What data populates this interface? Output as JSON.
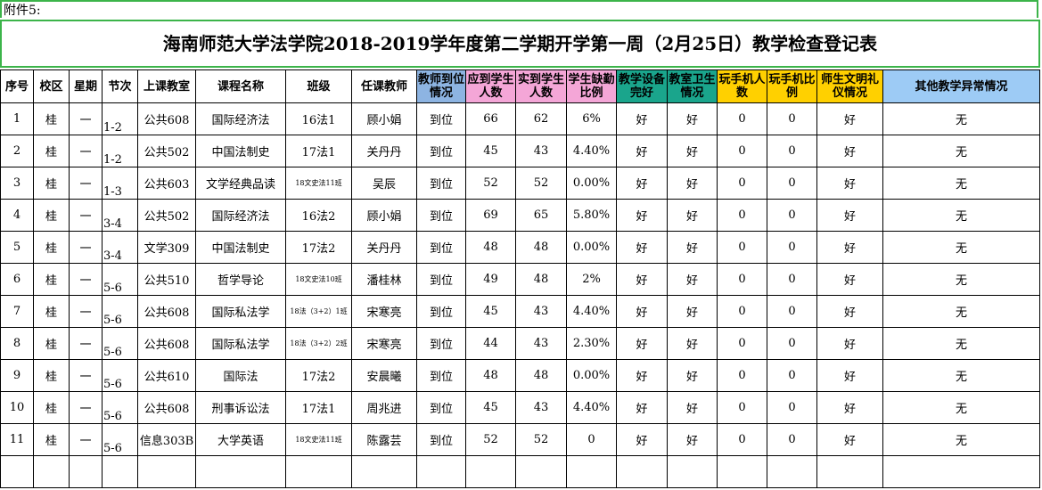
{
  "header": {
    "attachment": "附件5:",
    "title": "海南师范大学法学院2018-2019学年度第二学期开学第一周（2月25日）教学检查登记表"
  },
  "table": {
    "headers": [
      "序号",
      "校区",
      "星期",
      "节次",
      "上课教室",
      "课程名称",
      "班级",
      "任课教师",
      "教师到位情况",
      "应到学生人数",
      "实到学生人数",
      "学生缺勤比例",
      "教学设备完好",
      "教室卫生情况",
      "玩手机人数",
      "玩手机比例",
      "师生文明礼仪情况",
      "其他教学异常情况"
    ],
    "rows": [
      [
        "1",
        "桂",
        "一",
        "1-2",
        "公共608",
        "国际经济法",
        "16法1",
        "顾小娟",
        "到位",
        "66",
        "62",
        "6%",
        "好",
        "好",
        "0",
        "0",
        "好",
        "无"
      ],
      [
        "2",
        "桂",
        "一",
        "1-2",
        "公共502",
        "中国法制史",
        "17法1",
        "关丹丹",
        "到位",
        "45",
        "43",
        "4.40%",
        "好",
        "好",
        "0",
        "0",
        "好",
        "无"
      ],
      [
        "3",
        "桂",
        "一",
        "1-3",
        "公共603",
        "文学经典品读",
        "18文史法11班",
        "吴辰",
        "到位",
        "52",
        "52",
        "0.00%",
        "好",
        "好",
        "0",
        "0",
        "好",
        "无"
      ],
      [
        "4",
        "桂",
        "一",
        "3-4",
        "公共502",
        "国际经济法",
        "16法2",
        "顾小娟",
        "到位",
        "69",
        "65",
        "5.80%",
        "好",
        "好",
        "0",
        "0",
        "好",
        "无"
      ],
      [
        "5",
        "桂",
        "一",
        "3-4",
        "文学309",
        "中国法制史",
        "17法2",
        "关丹丹",
        "到位",
        "48",
        "48",
        "0.00%",
        "好",
        "好",
        "0",
        "0",
        "好",
        "无"
      ],
      [
        "6",
        "桂",
        "一",
        "5-6",
        "公共510",
        "哲学导论",
        "18文史法10班",
        "潘桂林",
        "到位",
        "49",
        "48",
        "2%",
        "好",
        "好",
        "0",
        "0",
        "好",
        "无"
      ],
      [
        "7",
        "桂",
        "一",
        "5-6",
        "公共608",
        "国际私法学",
        "18法（3+2）1班",
        "宋寒亮",
        "到位",
        "45",
        "43",
        "4.40%",
        "好",
        "好",
        "0",
        "0",
        "好",
        "无"
      ],
      [
        "8",
        "桂",
        "一",
        "5-6",
        "公共608",
        "国际私法学",
        "18法（3+2）2班",
        "宋寒亮",
        "到位",
        "44",
        "43",
        "2.30%",
        "好",
        "好",
        "0",
        "0",
        "好",
        "无"
      ],
      [
        "9",
        "桂",
        "一",
        "5-6",
        "公共610",
        "国际法",
        "17法2",
        "安晨曦",
        "到位",
        "48",
        "48",
        "0.00%",
        "好",
        "好",
        "0",
        "0",
        "好",
        "无"
      ],
      [
        "10",
        "桂",
        "一",
        "5-6",
        "公共608",
        "刑事诉讼法",
        "17法1",
        "周兆进",
        "到位",
        "45",
        "43",
        "4.40%",
        "好",
        "好",
        "0",
        "0",
        "好",
        "无"
      ],
      [
        "11",
        "桂",
        "一",
        "5-6",
        "信息303B",
        "大学英语",
        "18文史法11班",
        "陈露芸",
        "到位",
        "52",
        "52",
        "0",
        "好",
        "好",
        "0",
        "0",
        "好",
        "无"
      ]
    ]
  }
}
